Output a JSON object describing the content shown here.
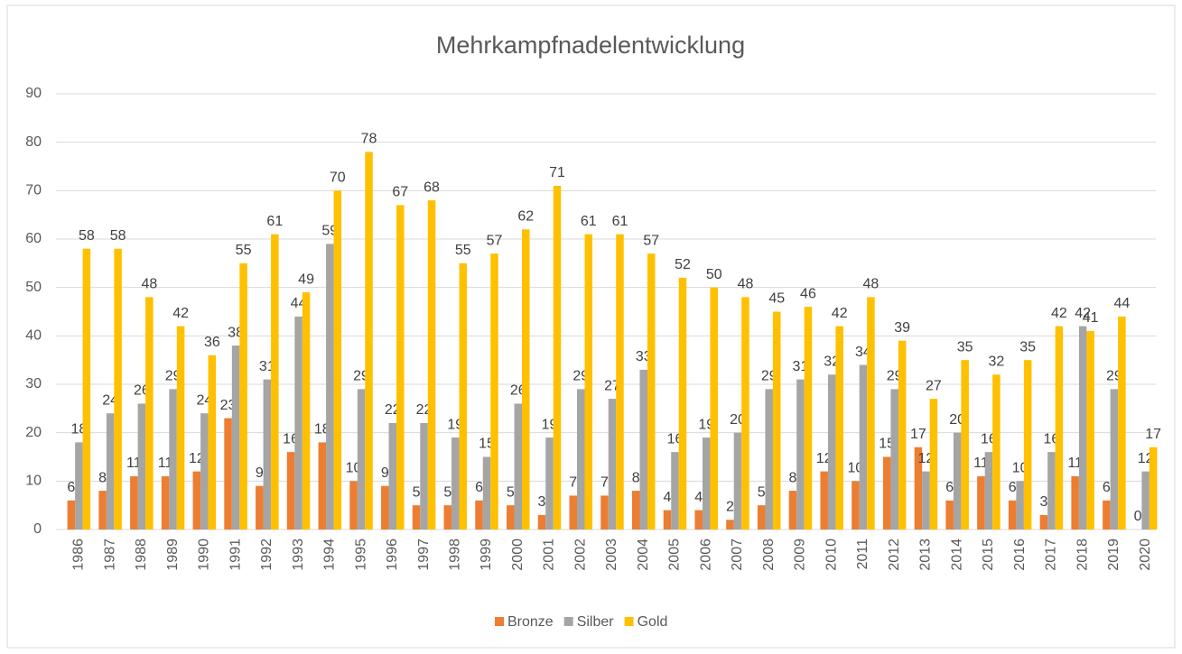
{
  "chart_data": {
    "type": "bar",
    "title": "Mehrkampfnadelentwicklung",
    "categories": [
      "1986",
      "1987",
      "1988",
      "1989",
      "1990",
      "1991",
      "1992",
      "1993",
      "1994",
      "1995",
      "1996",
      "1997",
      "1998",
      "1999",
      "2000",
      "2001",
      "2002",
      "2003",
      "2004",
      "2005",
      "2006",
      "2007",
      "2008",
      "2009",
      "2010",
      "2011",
      "2012",
      "2013",
      "2014",
      "2015",
      "2016",
      "2017",
      "2018",
      "2019",
      "2020"
    ],
    "series": [
      {
        "name": "Bronze",
        "color": "#ED7D31",
        "values": [
          6,
          8,
          11,
          11,
          12,
          23,
          9,
          16,
          18,
          10,
          9,
          5,
          5,
          6,
          5,
          3,
          7,
          7,
          8,
          4,
          4,
          2,
          5,
          8,
          12,
          10,
          15,
          17,
          6,
          11,
          6,
          3,
          11,
          6,
          0
        ]
      },
      {
        "name": "Silber",
        "color": "#A5A5A5",
        "values": [
          18,
          24,
          26,
          29,
          24,
          38,
          31,
          44,
          59,
          29,
          22,
          22,
          19,
          15,
          26,
          19,
          29,
          27,
          33,
          16,
          19,
          20,
          29,
          31,
          32,
          34,
          29,
          12,
          20,
          16,
          10,
          16,
          42,
          29,
          12
        ]
      },
      {
        "name": "Gold",
        "color": "#FFC000",
        "values": [
          58,
          58,
          48,
          42,
          36,
          55,
          61,
          49,
          70,
          78,
          67,
          68,
          55,
          57,
          62,
          71,
          61,
          61,
          57,
          52,
          50,
          48,
          45,
          46,
          42,
          48,
          39,
          27,
          35,
          32,
          35,
          42,
          41,
          44,
          17
        ]
      }
    ],
    "ylim": [
      0,
      90
    ],
    "yticks": [
      0,
      10,
      20,
      30,
      40,
      50,
      60,
      70,
      80,
      90
    ],
    "grid": true,
    "legend": "bottom"
  }
}
